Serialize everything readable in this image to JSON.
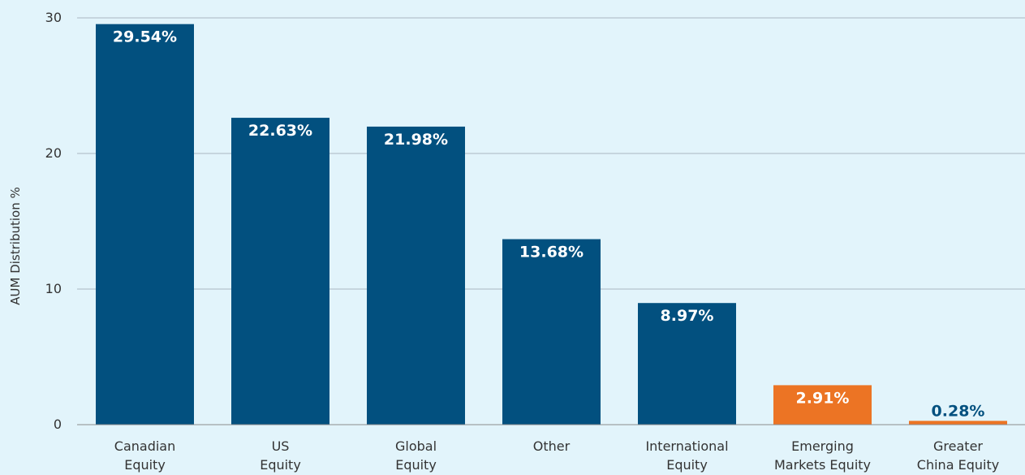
{
  "chart_data": {
    "type": "bar",
    "ylabel": "AUM Distribution %",
    "xlabel": "",
    "ylim": [
      0,
      30
    ],
    "yticks": [
      0,
      10,
      20,
      30
    ],
    "grid": true,
    "categories": [
      [
        "Canadian",
        "Equity"
      ],
      [
        "US",
        "Equity"
      ],
      [
        "Global",
        "Equity"
      ],
      [
        "Other"
      ],
      [
        "International",
        "Equity"
      ],
      [
        "Emerging",
        "Markets Equity"
      ],
      [
        "Greater",
        "China Equity"
      ]
    ],
    "values": [
      29.54,
      22.63,
      21.98,
      13.68,
      8.97,
      2.91,
      0.28
    ],
    "data_labels": [
      "29.54%",
      "22.63%",
      "21.98%",
      "13.68%",
      "8.97%",
      "2.91%",
      "0.28%"
    ],
    "bar_colors": [
      "#02507f",
      "#02507f",
      "#02507f",
      "#02507f",
      "#02507f",
      "#ec7424",
      "#ec7424"
    ],
    "label_colors": [
      "#ffffff",
      "#ffffff",
      "#ffffff",
      "#ffffff",
      "#ffffff",
      "#ffffff",
      "#02507f"
    ],
    "grid_color": "#a9b6c0",
    "axis_color": "#8c8c8c"
  }
}
